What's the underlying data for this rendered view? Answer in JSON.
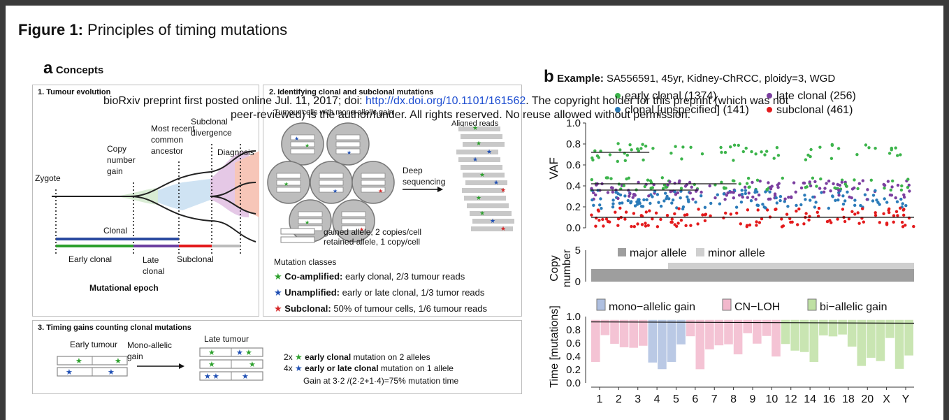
{
  "figure": {
    "label": "Figure 1:",
    "title": "Principles of timing mutations"
  },
  "watermark": {
    "line1_pre": "bioRxiv preprint first posted online Jul. 11, 2017; doi: ",
    "line1_link": "http://dx.doi.org/10.1101/161562",
    "line1_post": ". The copyright holder for this preprint (which was not",
    "line2": "peer-reviewed) is the author/funder. All rights reserved. No reuse allowed without permission."
  },
  "panel_a": {
    "letter": "a",
    "title": "Concepts",
    "box1": {
      "title": "1. Tumour evolution",
      "labels": {
        "zygote": "Zygote",
        "copy_gain": [
          "Copy",
          "number",
          "gain"
        ],
        "mrca": [
          "Most recent",
          "common",
          "ancestor"
        ],
        "divergence": [
          "Subclonal",
          "divergence"
        ],
        "diagnosis": "Diagnosis",
        "clonal": "Clonal",
        "early_clonal": "Early clonal",
        "late_clonal": [
          "Late",
          "clonal"
        ],
        "subclonal": "Subclonal",
        "epoch": "Mutational epoch"
      }
    },
    "box2": {
      "title": "2. Identifying clonal and subclonal mutations",
      "cells_label": "Tumour cells with mono-allelic gain",
      "aligned_label": "Aligned reads",
      "deep_seq": [
        "Deep",
        "sequencing"
      ],
      "gained": "gained allele, 2 copies/cell",
      "retained": "retained allele, 1 copy/cell",
      "classes_title": "Mutation classes",
      "classes": [
        {
          "bold": "Co-amplified:",
          "text": " early clonal,  2/3 tumour reads",
          "color": "#2ca02c"
        },
        {
          "bold": "Unamplified:",
          "text": " early or late clonal, 1/3 tumor reads",
          "color": "#1f4fb4"
        },
        {
          "bold": "Subclonal:",
          "text": " 50% of tumour cells, 1/6 tumour reads",
          "color": "#d62728"
        }
      ]
    },
    "box3": {
      "title": "3. Timing gains counting clonal mutations",
      "early": "Early tumour",
      "late": "Late tumour",
      "mono": [
        "Mono-allelic",
        "gain"
      ],
      "line1_pre": "2x",
      "line1_bold": "early clonal",
      "line1_post": " mutation on 2 alleles",
      "line2_pre": "4x",
      "line2_bold": "early or late clonal",
      "line2_post": " mutation on 1 allele",
      "formula": "Gain at 3·2 /(2·2+1·4)=75% mutation time"
    }
  },
  "panel_b": {
    "letter": "b",
    "example_bold": "Example:",
    "example": " SA556591, 45yr, Kidney-ChRCC, ploidy=3, WGD",
    "legend_top": [
      {
        "label": "early clonal (1374)",
        "color": "#3cb44b"
      },
      {
        "label": "late clonal (256)",
        "color": "#7b3fa0"
      },
      {
        "label": "clonal [unspecified] (141)",
        "color": "#2b7bb9"
      },
      {
        "label": "subclonal (461)",
        "color": "#e31a1c"
      }
    ],
    "cn_legend": [
      {
        "label": "major allele",
        "color": "#9e9e9e"
      },
      {
        "label": "minor allele",
        "color": "#cfcfcf"
      }
    ],
    "time_legend": [
      {
        "label": "mono−allelic gain",
        "color": "#aebfe0"
      },
      {
        "label": "CN−LOH",
        "color": "#f2b8cc"
      },
      {
        "label": "bi−allelic gain",
        "color": "#bfe0a4"
      }
    ],
    "vaf_ylabel": "VAF",
    "cn_ylabel": [
      "Copy",
      "number"
    ],
    "time_ylabel": "Time [mutations]",
    "chrom_labels": [
      "1",
      "2",
      "3",
      "4",
      "5",
      "6",
      "7",
      "8",
      "9",
      "10",
      "12",
      "14",
      "16",
      "18",
      "20",
      "X",
      "Y"
    ]
  },
  "chart_data": [
    {
      "type": "scatter",
      "title": "",
      "ylabel": "VAF",
      "ylim": [
        0,
        1.0
      ],
      "yticks": [
        "0.0",
        "0.2",
        "0.4",
        "0.6",
        "0.8",
        "1.0"
      ],
      "series": [
        {
          "name": "early clonal (1374)",
          "approx_y": 0.72
        },
        {
          "name": "late clonal (256)",
          "approx_y": 0.36
        },
        {
          "name": "clonal [unspecified] (141)",
          "approx_y": 0.27
        },
        {
          "name": "subclonal (461)",
          "approx_y": 0.1
        }
      ]
    },
    {
      "type": "bar",
      "ylabel": "Copy number",
      "ylim": [
        0,
        5
      ],
      "yticks": [
        "0",
        "5"
      ],
      "series": [
        {
          "name": "major allele"
        },
        {
          "name": "minor allele"
        }
      ]
    },
    {
      "type": "bar",
      "ylabel": "Time [mutations]",
      "ylim": [
        0,
        1.0
      ],
      "yticks": [
        "0.0",
        "0.2",
        "0.4",
        "0.6",
        "0.8",
        "1.0"
      ],
      "series": [
        {
          "name": "mono−allelic gain"
        },
        {
          "name": "CN−LOH"
        },
        {
          "name": "bi−allelic gain"
        }
      ]
    }
  ]
}
